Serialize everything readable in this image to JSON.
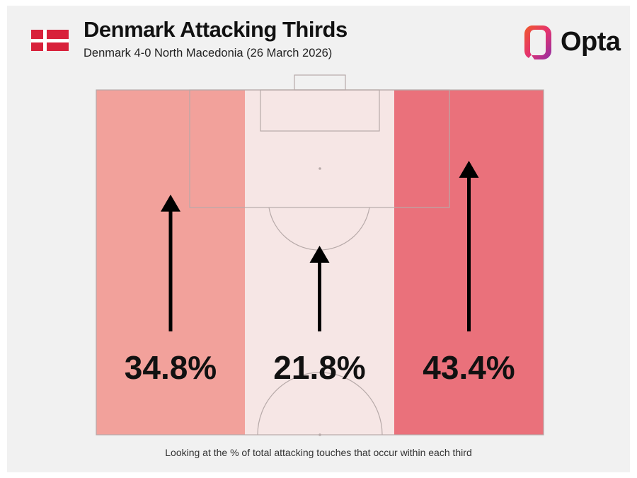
{
  "header": {
    "title": "Denmark Attacking Thirds",
    "subtitle": "Denmark 4-0 North Macedonia (26 March 2026)",
    "brand": "Opta"
  },
  "flag": {
    "color": "#d8213b",
    "cross": "#ffffff"
  },
  "chart_data": {
    "type": "bar",
    "title": "Denmark Attacking Thirds",
    "subtitle": "Denmark 4-0 North Macedonia (26 March 2026)",
    "categories": [
      "Left third",
      "Central third",
      "Right third"
    ],
    "values": [
      34.8,
      21.8,
      43.4
    ],
    "labels": [
      "34.8%",
      "21.8%",
      "43.4%"
    ],
    "unit": "%",
    "colors": [
      "#f2a19b",
      "#f6e6e5",
      "#ea717b"
    ],
    "encoding": "arrow length and zone shading proportional to share of touches",
    "note": "Looking at the % of total attacking touches that occur within each third"
  },
  "footer": {
    "note": "Looking at the % of total attacking touches that occur within each third"
  }
}
